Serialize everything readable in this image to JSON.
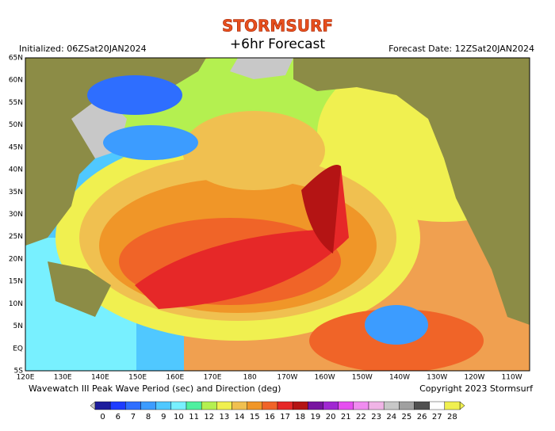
{
  "header": {
    "brand": "STORMSURF",
    "title": "+6hr Forecast",
    "initialized": "Initialized: 06ZSat20JAN2024",
    "forecast_date": "Forecast Date: 12ZSat20JAN2024"
  },
  "lat_labels": [
    "65N",
    "60N",
    "55N",
    "50N",
    "45N",
    "40N",
    "35N",
    "30N",
    "25N",
    "20N",
    "15N",
    "10N",
    "5N",
    "EQ",
    "5S"
  ],
  "lon_labels": [
    "120E",
    "130E",
    "140E",
    "150E",
    "160E",
    "170E",
    "180",
    "170W",
    "160W",
    "150W",
    "140W",
    "130W",
    "120W",
    "110W"
  ],
  "footer": {
    "caption": "Wavewatch III Peak Wave Period (sec) and Direction (deg)",
    "copyright": "Copyright 2023 Stormsurf"
  },
  "legend": {
    "values": [
      0,
      6,
      7,
      8,
      9,
      10,
      11,
      12,
      13,
      14,
      15,
      16,
      17,
      18,
      19,
      20,
      21,
      22,
      23,
      24,
      25,
      26,
      27,
      28
    ],
    "colors": [
      "#1c1c9c",
      "#1e3cff",
      "#2e6eff",
      "#3c9cff",
      "#50c8ff",
      "#78f0ff",
      "#50f0a0",
      "#b4f050",
      "#f0f050",
      "#f0c050",
      "#f09628",
      "#f06428",
      "#e62828",
      "#b41414",
      "#7814a0",
      "#a028d2",
      "#e650f0",
      "#f08cf0",
      "#f0b4e6",
      "#c8c8c8",
      "#a0a0a0",
      "#505050",
      "#ffffff",
      "#f0f050"
    ]
  }
}
